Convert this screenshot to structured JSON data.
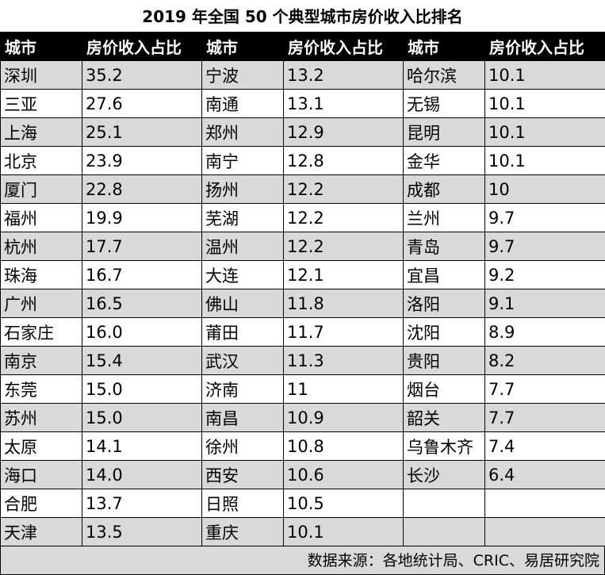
{
  "chart_data": {
    "type": "table",
    "title": "2019 年全国 50 个典型城市房价收入比排名",
    "columns": [
      "城市",
      "房价收入占比",
      "城市",
      "房价收入占比",
      "城市",
      "房价收入占比"
    ],
    "column_groups": [
      {
        "rows": [
          [
            "深圳",
            "35.2"
          ],
          [
            "三亚",
            "27.6"
          ],
          [
            "上海",
            "25.1"
          ],
          [
            "北京",
            "23.9"
          ],
          [
            "厦门",
            "22.8"
          ],
          [
            "福州",
            "19.9"
          ],
          [
            "杭州",
            "17.7"
          ],
          [
            "珠海",
            "16.7"
          ],
          [
            "广州",
            "16.5"
          ],
          [
            "石家庄",
            "16.0"
          ],
          [
            "南京",
            "15.4"
          ],
          [
            "东莞",
            "15.0"
          ],
          [
            "苏州",
            "15.0"
          ],
          [
            "太原",
            "14.1"
          ],
          [
            "海口",
            "14.0"
          ],
          [
            "合肥",
            "13.7"
          ],
          [
            "天津",
            "13.5"
          ]
        ]
      },
      {
        "rows": [
          [
            "宁波",
            "13.2"
          ],
          [
            "南通",
            "13.1"
          ],
          [
            "郑州",
            "12.9"
          ],
          [
            "南宁",
            "12.8"
          ],
          [
            "扬州",
            "12.2"
          ],
          [
            "芜湖",
            "12.2"
          ],
          [
            "温州",
            "12.2"
          ],
          [
            "大连",
            "12.1"
          ],
          [
            "佛山",
            "11.8"
          ],
          [
            "莆田",
            "11.7"
          ],
          [
            "武汉",
            "11.3"
          ],
          [
            "济南",
            "11"
          ],
          [
            "南昌",
            "10.9"
          ],
          [
            "徐州",
            "10.8"
          ],
          [
            "西安",
            "10.6"
          ],
          [
            "日照",
            "10.5"
          ],
          [
            "重庆",
            "10.1"
          ]
        ]
      },
      {
        "rows": [
          [
            "哈尔滨",
            "10.1"
          ],
          [
            "无锡",
            "10.1"
          ],
          [
            "昆明",
            "10.1"
          ],
          [
            "金华",
            "10.1"
          ],
          [
            "成都",
            "10"
          ],
          [
            "兰州",
            "9.7"
          ],
          [
            "青岛",
            "9.7"
          ],
          [
            "宜昌",
            "9.2"
          ],
          [
            "洛阳",
            "9.1"
          ],
          [
            "沈阳",
            "8.9"
          ],
          [
            "贵阳",
            "8.2"
          ],
          [
            "烟台",
            "7.7"
          ],
          [
            "韶关",
            "7.7"
          ],
          [
            "乌鲁木齐",
            "7.4"
          ],
          [
            "长沙",
            "6.4"
          ],
          [
            "",
            ""
          ],
          [
            "",
            ""
          ]
        ]
      }
    ],
    "source": "数据来源：各地统计局、CRIC、易居研究院"
  }
}
